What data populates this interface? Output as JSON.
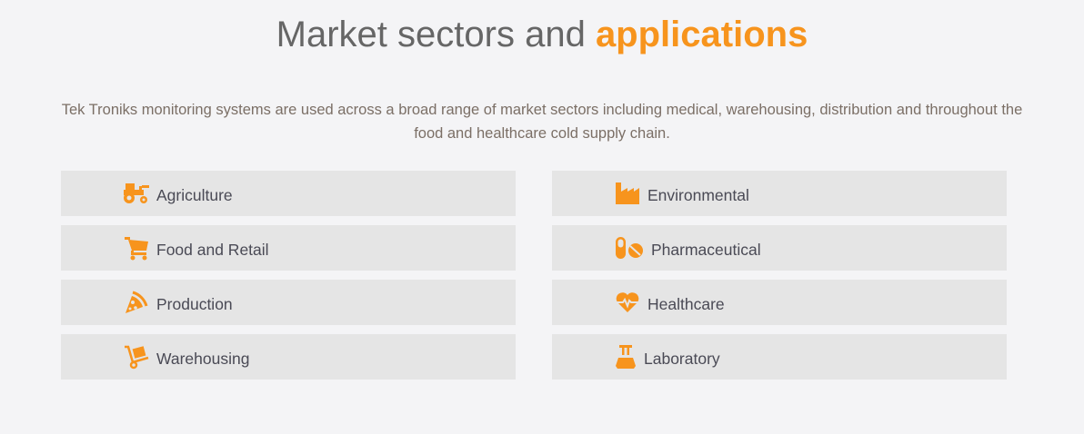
{
  "header": {
    "title_plain": "Market sectors and",
    "title_accent": "applications"
  },
  "intro": "Tek Troniks monitoring systems are used across a broad range of market sectors including medical, warehousing, distribution and throughout the food and healthcare cold supply chain.",
  "colors": {
    "accent": "#f7941d",
    "tile": "#e5e5e5",
    "background": "#f4f4f6"
  },
  "sectors": [
    {
      "label": "Agriculture",
      "icon": "tractor-icon"
    },
    {
      "label": "Food and Retail",
      "icon": "shopping-cart-icon"
    },
    {
      "label": "Production",
      "icon": "pizza-slice-icon"
    },
    {
      "label": "Warehousing",
      "icon": "dolly-icon"
    },
    {
      "label": "Environmental",
      "icon": "factory-icon"
    },
    {
      "label": "Pharmaceutical",
      "icon": "pills-icon"
    },
    {
      "label": "Healthcare",
      "icon": "heartbeat-icon"
    },
    {
      "label": "Laboratory",
      "icon": "flask-icon"
    }
  ]
}
